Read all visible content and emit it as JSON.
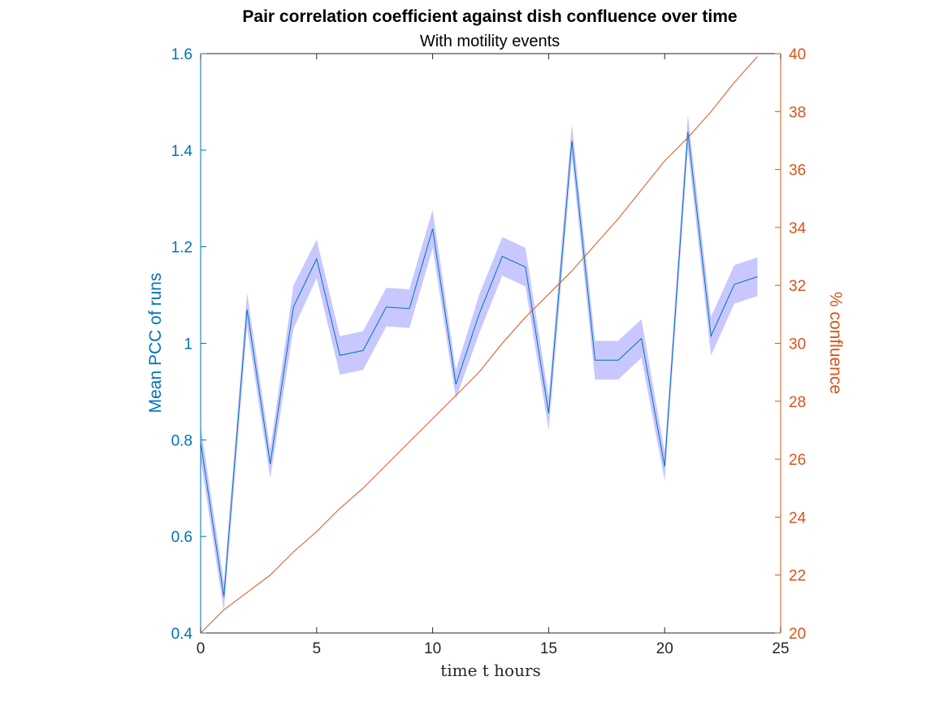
{
  "chart_data": {
    "type": "line",
    "title": "Pair correlation coefficient against dish confluence over time",
    "subtitle": "With motility events",
    "xlabel": "time t hours",
    "ylabel_left": "Mean PCC of runs",
    "ylabel_right": "% confluence",
    "xlim": [
      0,
      25
    ],
    "ylim_left": [
      0.4,
      1.6
    ],
    "ylim_right": [
      20,
      40
    ],
    "x_ticks": [
      0,
      5,
      10,
      15,
      20,
      25
    ],
    "y_ticks_left": [
      0.4,
      0.6,
      0.8,
      1,
      1.2,
      1.4,
      1.6
    ],
    "y_ticks_right": [
      20,
      22,
      24,
      26,
      28,
      30,
      32,
      34,
      36,
      38,
      40
    ],
    "grid": false,
    "colors": {
      "pcc_line": "#0072bd",
      "pcc_band": "#c8c8ff",
      "confluence_line": "#d95319",
      "axis": "#262626"
    },
    "x": [
      0,
      1,
      2,
      3,
      4,
      5,
      6,
      7,
      8,
      9,
      10,
      11,
      12,
      13,
      14,
      15,
      16,
      17,
      18,
      19,
      20,
      21,
      22,
      23,
      24
    ],
    "pcc_mean": [
      0.795,
      0.475,
      1.07,
      0.75,
      1.075,
      1.175,
      0.975,
      0.985,
      1.075,
      1.072,
      1.237,
      0.915,
      1.06,
      1.18,
      1.158,
      0.855,
      1.42,
      0.965,
      0.965,
      1.01,
      0.745,
      1.438,
      1.015,
      1.122,
      1.138
    ],
    "pcc_band_halfwidth": [
      0.035,
      0.03,
      0.035,
      0.03,
      0.045,
      0.04,
      0.04,
      0.04,
      0.04,
      0.04,
      0.04,
      0.03,
      0.04,
      0.04,
      0.04,
      0.035,
      0.035,
      0.04,
      0.04,
      0.04,
      0.03,
      0.035,
      0.04,
      0.04,
      0.04
    ],
    "confluence": [
      20.0,
      20.8,
      21.4,
      22.0,
      22.8,
      23.5,
      24.3,
      25.0,
      25.8,
      26.6,
      27.4,
      28.2,
      29.0,
      30.0,
      30.9,
      31.7,
      32.5,
      33.4,
      34.3,
      35.3,
      36.3,
      37.1,
      38.0,
      39.0,
      39.9
    ]
  }
}
